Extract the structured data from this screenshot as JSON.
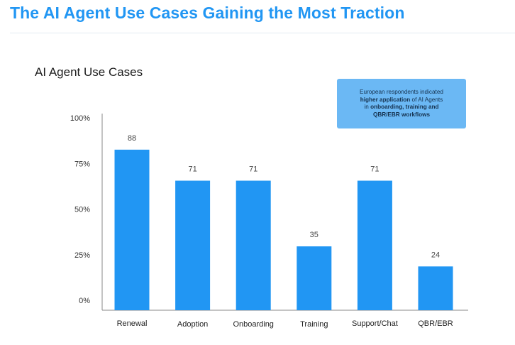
{
  "header": {
    "title": "The AI Agent Use Cases Gaining the Most Traction"
  },
  "callout": {
    "text_1": "European respondents indicated",
    "text_2_bold": "higher application",
    "text_2_rest": " of AI Agents",
    "text_3": "in ",
    "text_3_bold": "onboarding, training and",
    "text_4_bold": "QBR/EBR workflows"
  },
  "colors": {
    "accent": "#2196f3",
    "bar": "#2196f3",
    "callout_bg": "#6bb8f4"
  },
  "chart_data": {
    "type": "bar",
    "title": "AI Agent Use Cases",
    "xlabel": "",
    "ylabel": "",
    "categories": [
      "Renewal",
      "Adoption",
      "Onboarding",
      "Training",
      "Support/Chat",
      "QBR/EBR"
    ],
    "values": [
      88,
      71,
      71,
      35,
      71,
      24
    ],
    "data_labels": [
      "88",
      "71",
      "71",
      "35",
      "71",
      "24"
    ],
    "yticks": [
      "0%",
      "25%",
      "50%",
      "75%",
      "100%"
    ],
    "ytick_values": [
      0,
      25,
      50,
      75,
      100
    ],
    "ylim": [
      0,
      100
    ],
    "grid": false,
    "legend": "none"
  }
}
